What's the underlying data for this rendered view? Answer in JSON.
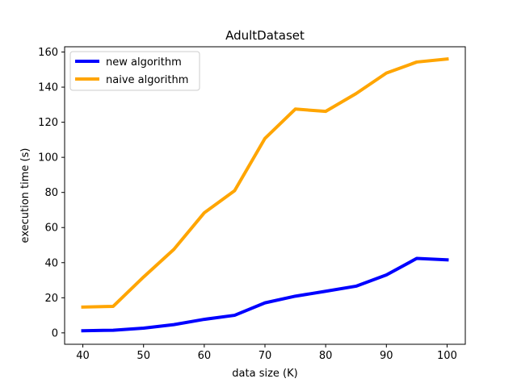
{
  "chart_data": {
    "type": "line",
    "title": "AdultDataset",
    "xlabel": "data size (K)",
    "ylabel": "execution time (s)",
    "x": [
      40,
      45,
      50,
      55,
      60,
      65,
      70,
      75,
      80,
      85,
      90,
      95,
      100
    ],
    "xlim": [
      37.0,
      103.0
    ],
    "ylim": [
      -6.5,
      163.0
    ],
    "xticks": [
      40,
      50,
      60,
      70,
      80,
      90,
      100
    ],
    "yticks": [
      0,
      20,
      40,
      60,
      80,
      100,
      120,
      140,
      160
    ],
    "grid": false,
    "legend_position": "top-left",
    "series": [
      {
        "name": "new algorithm",
        "color": "#0000ff",
        "values": [
          1.2,
          1.5,
          2.7,
          4.7,
          7.7,
          10.0,
          17.1,
          20.9,
          23.7,
          26.6,
          33.0,
          42.4,
          41.6
        ]
      },
      {
        "name": "naive algorithm",
        "color": "#ffa500",
        "values": [
          14.7,
          15.1,
          31.8,
          47.6,
          68.4,
          81.0,
          110.8,
          127.5,
          126.2,
          136.3,
          148.0,
          154.3,
          156.0
        ]
      }
    ]
  }
}
